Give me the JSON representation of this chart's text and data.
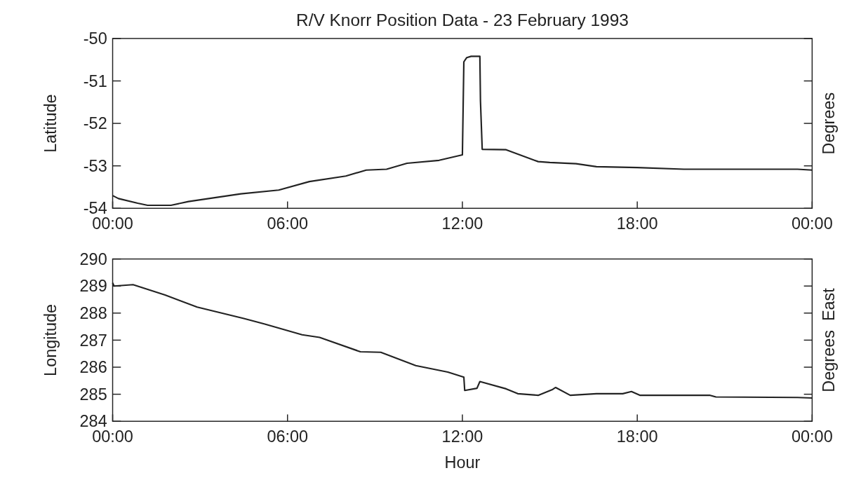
{
  "chart_data": [
    {
      "type": "line",
      "title": "R/V Knorr Position Data - 23 February 1993",
      "ylabel": "Latitude",
      "y2label": "Degrees",
      "xlim": [
        0,
        24
      ],
      "xticks": [
        {
          "value": 0,
          "label": "00:00"
        },
        {
          "value": 6,
          "label": "06:00"
        },
        {
          "value": 12,
          "label": "12:00"
        },
        {
          "value": 18,
          "label": "18:00"
        },
        {
          "value": 24,
          "label": "00:00"
        }
      ],
      "ylim": [
        -54,
        -50
      ],
      "yticks": [
        -54,
        -53,
        -52,
        -51,
        -50
      ],
      "series": [
        {
          "color": "#222222",
          "x": [
            0,
            0.2,
            0.86,
            1.2,
            2.0,
            2.6,
            4.4,
            5.7,
            6.75,
            8.0,
            8.7,
            9.4,
            10.1,
            11.2,
            12.0,
            12.05,
            12.15,
            12.3,
            12.6,
            12.62,
            12.68,
            13.5,
            14.6,
            15.0,
            15.9,
            16.6,
            18.0,
            19.6,
            23.5,
            24
          ],
          "values": [
            -53.7,
            -53.77,
            -53.88,
            -53.93,
            -53.93,
            -53.84,
            -53.66,
            -53.57,
            -53.37,
            -53.24,
            -53.1,
            -53.08,
            -52.94,
            -52.87,
            -52.74,
            -50.55,
            -50.45,
            -50.42,
            -50.42,
            -51.47,
            -52.61,
            -52.62,
            -52.9,
            -52.92,
            -52.95,
            -53.02,
            -53.04,
            -53.08,
            -53.08,
            -53.1
          ]
        }
      ]
    },
    {
      "type": "line",
      "xlabel": "Hour",
      "ylabel": "Longitude",
      "y2label": "Degrees  East",
      "xlim": [
        0,
        24
      ],
      "xticks": [
        {
          "value": 0,
          "label": "00:00"
        },
        {
          "value": 6,
          "label": "06:00"
        },
        {
          "value": 12,
          "label": "12:00"
        },
        {
          "value": 18,
          "label": "18:00"
        },
        {
          "value": 24,
          "label": "00:00"
        }
      ],
      "ylim": [
        284,
        290
      ],
      "yticks": [
        284,
        285,
        286,
        287,
        288,
        289,
        290
      ],
      "series": [
        {
          "color": "#222222",
          "x": [
            0,
            0.05,
            0.7,
            1.8,
            2.9,
            4.5,
            5.2,
            6.5,
            7.1,
            8.5,
            9.2,
            10.4,
            11.5,
            12.05,
            12.08,
            12.5,
            12.6,
            13.5,
            13.9,
            14.6,
            15.1,
            15.2,
            15.7,
            16.6,
            17.5,
            17.8,
            18.1,
            20.5,
            20.7,
            23.5,
            24
          ],
          "values": [
            289.12,
            289.0,
            289.05,
            288.67,
            288.22,
            287.8,
            287.6,
            287.2,
            287.1,
            286.57,
            286.55,
            286.06,
            285.82,
            285.63,
            285.14,
            285.22,
            285.47,
            285.2,
            285.02,
            284.96,
            285.18,
            285.25,
            284.96,
            285.02,
            285.02,
            285.1,
            284.96,
            284.96,
            284.9,
            284.88,
            284.86
          ]
        }
      ]
    }
  ]
}
